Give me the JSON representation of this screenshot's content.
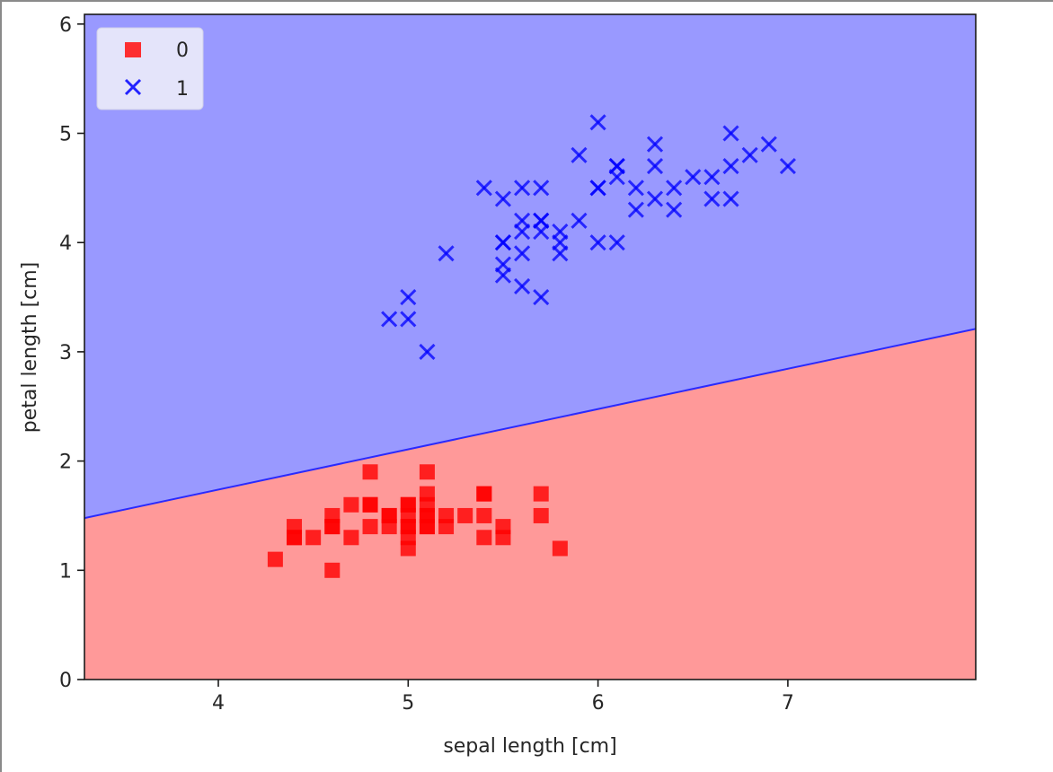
{
  "chart_data": {
    "type": "scatter",
    "title": "",
    "xlabel": "sepal length [cm]",
    "ylabel": "petal length [cm]",
    "xlim": [
      3.3,
      7.99
    ],
    "ylim": [
      0,
      6.09
    ],
    "xticks": [
      4,
      5,
      6,
      7
    ],
    "yticks": [
      0,
      1,
      2,
      3,
      4,
      5,
      6
    ],
    "grid": false,
    "legend_position": "upper left",
    "decision_regions": {
      "boundary_line": [
        [
          3.3,
          1.48
        ],
        [
          7.99,
          3.21
        ]
      ],
      "below_class": "0",
      "above_class": "1",
      "colors": {
        "0": "#ff9999",
        "1": "#9999ff"
      },
      "boundary_color": "#2a2aff"
    },
    "series": [
      {
        "name": "0",
        "marker": "square",
        "color": "#ff0000",
        "points": [
          [
            4.3,
            1.1
          ],
          [
            4.4,
            1.4
          ],
          [
            4.4,
            1.3
          ],
          [
            4.4,
            1.3
          ],
          [
            4.5,
            1.3
          ],
          [
            4.6,
            1.5
          ],
          [
            4.6,
            1.4
          ],
          [
            4.6,
            1.0
          ],
          [
            4.6,
            1.4
          ],
          [
            4.7,
            1.6
          ],
          [
            4.7,
            1.3
          ],
          [
            4.8,
            1.9
          ],
          [
            4.8,
            1.6
          ],
          [
            4.8,
            1.4
          ],
          [
            4.8,
            1.6
          ],
          [
            4.9,
            1.5
          ],
          [
            4.9,
            1.4
          ],
          [
            4.9,
            1.5
          ],
          [
            5.0,
            1.6
          ],
          [
            5.0,
            1.5
          ],
          [
            5.0,
            1.4
          ],
          [
            5.0,
            1.3
          ],
          [
            5.0,
            1.2
          ],
          [
            5.0,
            1.6
          ],
          [
            5.0,
            1.4
          ],
          [
            5.1,
            1.9
          ],
          [
            5.1,
            1.7
          ],
          [
            5.1,
            1.6
          ],
          [
            5.1,
            1.5
          ],
          [
            5.1,
            1.4
          ],
          [
            5.1,
            1.5
          ],
          [
            5.1,
            1.4
          ],
          [
            5.2,
            1.5
          ],
          [
            5.2,
            1.4
          ],
          [
            5.3,
            1.5
          ],
          [
            5.4,
            1.7
          ],
          [
            5.4,
            1.5
          ],
          [
            5.4,
            1.3
          ],
          [
            5.4,
            1.7
          ],
          [
            5.5,
            1.4
          ],
          [
            5.5,
            1.3
          ],
          [
            5.7,
            1.7
          ],
          [
            5.7,
            1.5
          ],
          [
            5.8,
            1.2
          ]
        ]
      },
      {
        "name": "1",
        "marker": "x",
        "color": "#0000ff",
        "points": [
          [
            4.9,
            3.3
          ],
          [
            5.0,
            3.5
          ],
          [
            5.0,
            3.3
          ],
          [
            5.1,
            3.0
          ],
          [
            5.2,
            3.9
          ],
          [
            5.4,
            4.5
          ],
          [
            5.5,
            4.4
          ],
          [
            5.5,
            4.0
          ],
          [
            5.5,
            4.0
          ],
          [
            5.5,
            3.8
          ],
          [
            5.5,
            3.7
          ],
          [
            5.6,
            4.5
          ],
          [
            5.6,
            4.2
          ],
          [
            5.6,
            4.1
          ],
          [
            5.6,
            3.9
          ],
          [
            5.6,
            3.6
          ],
          [
            5.7,
            4.5
          ],
          [
            5.7,
            4.2
          ],
          [
            5.7,
            4.2
          ],
          [
            5.7,
            4.1
          ],
          [
            5.7,
            3.5
          ],
          [
            5.8,
            4.1
          ],
          [
            5.8,
            4.0
          ],
          [
            5.8,
            3.9
          ],
          [
            5.9,
            4.8
          ],
          [
            5.9,
            4.2
          ],
          [
            6.0,
            5.1
          ],
          [
            6.0,
            4.5
          ],
          [
            6.0,
            4.5
          ],
          [
            6.0,
            4.0
          ],
          [
            6.1,
            4.7
          ],
          [
            6.1,
            4.7
          ],
          [
            6.1,
            4.6
          ],
          [
            6.1,
            4.0
          ],
          [
            6.2,
            4.5
          ],
          [
            6.2,
            4.3
          ],
          [
            6.3,
            4.9
          ],
          [
            6.3,
            4.7
          ],
          [
            6.3,
            4.4
          ],
          [
            6.4,
            4.5
          ],
          [
            6.4,
            4.3
          ],
          [
            6.5,
            4.6
          ],
          [
            6.6,
            4.6
          ],
          [
            6.6,
            4.4
          ],
          [
            6.7,
            5.0
          ],
          [
            6.7,
            4.7
          ],
          [
            6.7,
            4.4
          ],
          [
            6.8,
            4.8
          ],
          [
            6.9,
            4.9
          ],
          [
            7.0,
            4.7
          ]
        ]
      }
    ]
  }
}
